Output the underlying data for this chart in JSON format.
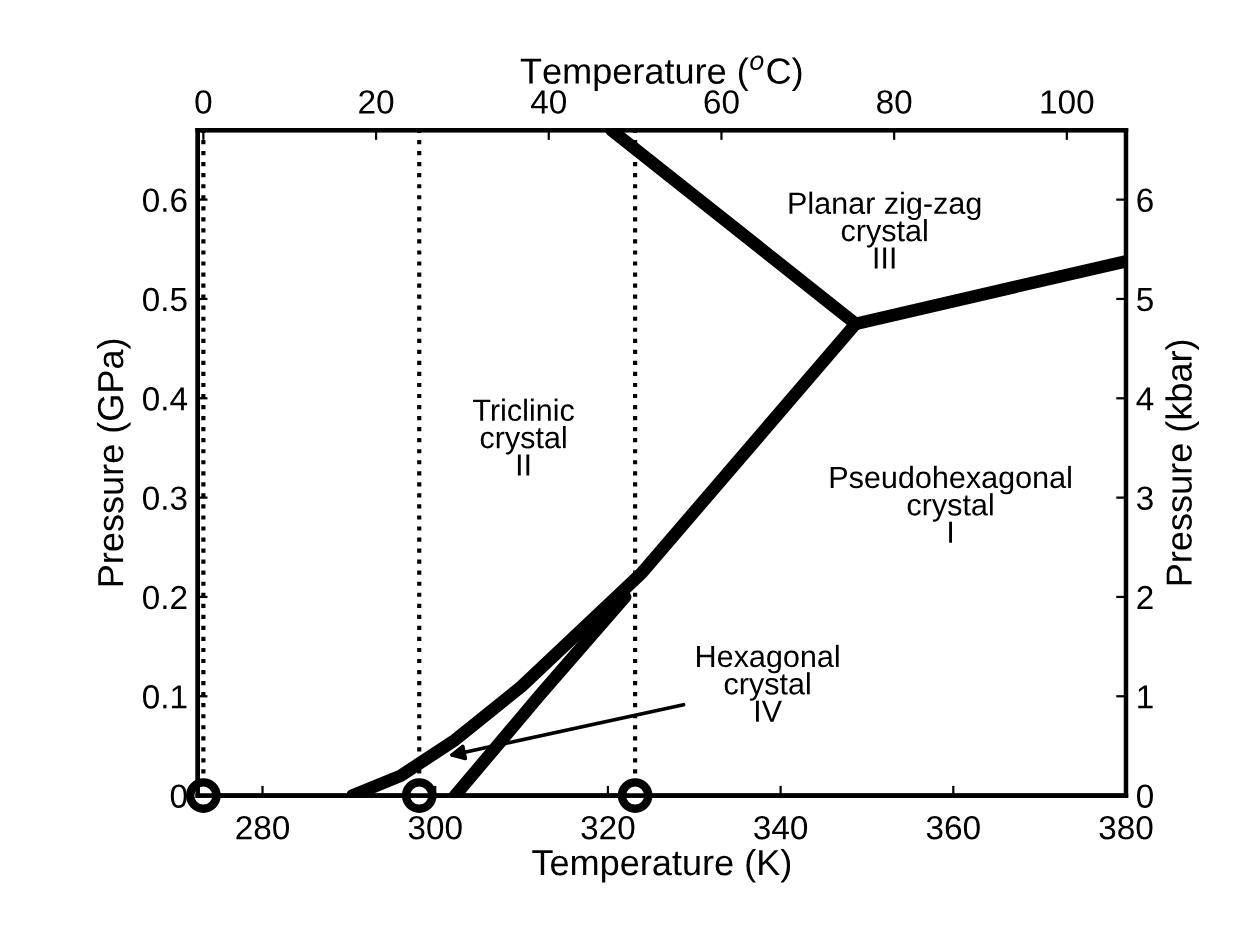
{
  "chart_data": {
    "type": "line",
    "xlabel": "Temperature (K)",
    "ylabel": "Pressure (GPa)",
    "y2label": "Pressure (kbar)",
    "x2label": "Temperature ($^{o}$C)",
    "series": [
      {
        "color": "#000000",
        "x": [
          320.4,
          348.7
        ],
        "values": [
          0.67,
          0.475
        ]
      },
      {
        "color": "#000000",
        "x": [
          348.7,
          380
        ],
        "values": [
          0.475,
          0.538
        ]
      },
      {
        "color": "#000000",
        "x": [
          290.4,
          296,
          302.3,
          310,
          323.9,
          348.7
        ],
        "values": [
          0,
          0.02,
          0.056,
          0.11,
          0.224,
          0.475
        ]
      },
      {
        "color": "#000000",
        "x": [
          302.3,
          312,
          322
        ],
        "values": [
          0,
          0.1,
          0.2
        ]
      },
      {
        "type": "scatter",
        "color": "#000000",
        "marker": "circle",
        "x": [
          273.15,
          298.15,
          323.15
        ],
        "values": [
          0,
          0,
          0
        ]
      }
    ],
    "xlim": [
      272.5,
      380
    ],
    "xticks": [
      280,
      300,
      320,
      340,
      360,
      380
    ],
    "ylim": [
      0,
      0.67
    ],
    "yticks": [
      0,
      0.1,
      0.2,
      0.3,
      0.4,
      0.5,
      0.6
    ],
    "x2lim": [
      -0.65,
      106.85
    ],
    "x2ticks": [
      0,
      20,
      40,
      60,
      80,
      100
    ],
    "y2lim": [
      0,
      6.7
    ],
    "y2ticks": [
      0,
      1,
      2,
      3,
      4,
      5,
      6
    ],
    "ref_lines": [
      {
        "axis": "x",
        "value": 273.15,
        "line_style": "dotted",
        "color": "#000000"
      },
      {
        "axis": "x",
        "value": 298.15,
        "line_style": "dotted",
        "color": "#000000"
      },
      {
        "axis": "x",
        "value": 323.15,
        "line_style": "dotted",
        "color": "#000000"
      }
    ],
    "annotations": [
      "Triclinic\ncrystal\nII",
      "Planar zig-zag\ncrystal\nIII",
      "Pseudohexagonal\ncrystal\nI",
      {
        "text": "Hexagonal\ncrystal\nIV",
        "x": 301.5,
        "y": 0.04
      }
    ],
    "line_style": "solid",
    "grid": false
  }
}
